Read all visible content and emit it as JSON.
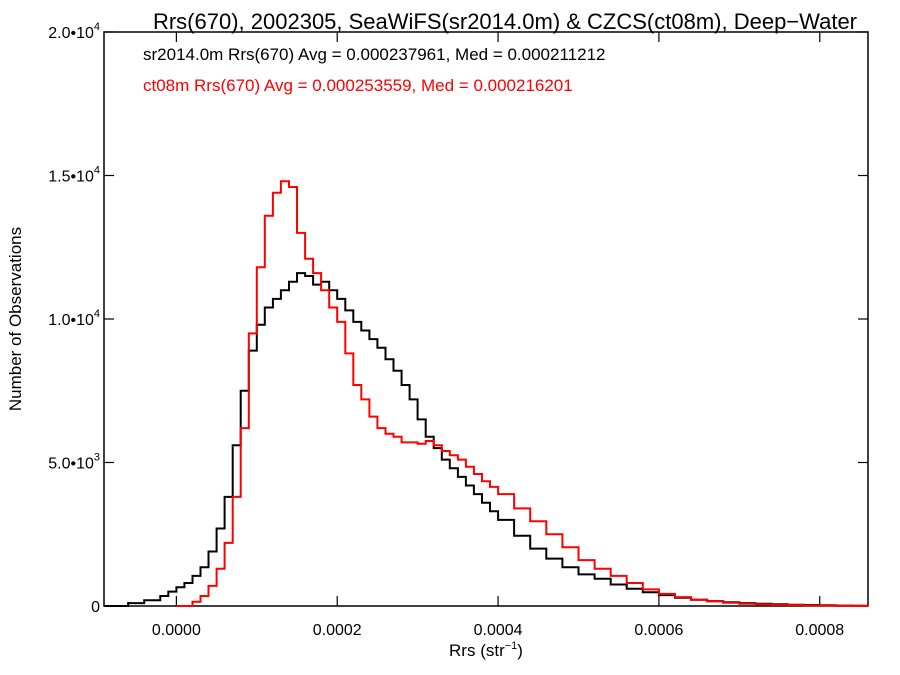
{
  "chart_data": {
    "type": "line",
    "title": "Rrs(670), 2002305, SeaWiFS(sr2014.0m) & CZCS(ct08m), Deep−Water",
    "xlabel": {
      "base": "Rrs (str",
      "sup": "−1",
      "tail": ")"
    },
    "ylabel": "Number of Observations",
    "xlim": [
      -9e-05,
      0.00086
    ],
    "ylim": [
      0,
      20000
    ],
    "x_ticks": [
      {
        "value": 0.0,
        "label": "0.0000"
      },
      {
        "value": 0.0002,
        "label": "0.0002"
      },
      {
        "value": 0.0004,
        "label": "0.0004"
      },
      {
        "value": 0.0006,
        "label": "0.0006"
      },
      {
        "value": 0.0008,
        "label": "0.0008"
      }
    ],
    "y_ticks": [
      {
        "value": 0,
        "base": "0",
        "sup": ""
      },
      {
        "value": 5000,
        "base": "5.0•10",
        "sup": "3"
      },
      {
        "value": 10000,
        "base": "1.0•10",
        "sup": "4"
      },
      {
        "value": 15000,
        "base": "1.5•10",
        "sup": "4"
      },
      {
        "value": 20000,
        "base": "2.0•10",
        "sup": "4"
      }
    ],
    "annotations": [
      {
        "text": "sr2014.0m Rrs(670) Avg = 0.000237961, Med = 0.000211212",
        "color": "#000000"
      },
      {
        "text": "ct08m Rrs(670) Avg = 0.000253559, Med = 0.000216201",
        "color": "#ff0000"
      }
    ],
    "series": [
      {
        "color": "#000000",
        "x": [
          -9e-05,
          -6e-05,
          -4e-05,
          -2e-05,
          -1e-05,
          0.0,
          1e-05,
          2e-05,
          3e-05,
          4e-05,
          5e-05,
          6e-05,
          7e-05,
          8e-05,
          9e-05,
          0.0001,
          0.00011,
          0.00012,
          0.00013,
          0.00014,
          0.00015,
          0.00016,
          0.00017,
          0.00018,
          0.00019,
          0.0002,
          0.00021,
          0.00022,
          0.00023,
          0.00024,
          0.00025,
          0.00026,
          0.00027,
          0.00028,
          0.00029,
          0.0003,
          0.00031,
          0.00032,
          0.00033,
          0.00034,
          0.00035,
          0.00036,
          0.00037,
          0.00038,
          0.00039,
          0.0004,
          0.00042,
          0.00044,
          0.00046,
          0.00048,
          0.0005,
          0.00052,
          0.00054,
          0.00056,
          0.00058,
          0.0006,
          0.00062,
          0.00064,
          0.00066,
          0.00068,
          0.0007,
          0.00072,
          0.00074,
          0.00076,
          0.00078,
          0.0008,
          0.00082,
          0.00084,
          0.00086
        ],
        "values": [
          0,
          100,
          200,
          350,
          500,
          650,
          800,
          1050,
          1350,
          1900,
          2700,
          3800,
          5600,
          7500,
          8900,
          9800,
          10400,
          10700,
          11000,
          11300,
          11600,
          11500,
          11200,
          11300,
          11000,
          10700,
          10300,
          9900,
          9600,
          9300,
          9000,
          8600,
          8200,
          7700,
          7200,
          6500,
          5900,
          5500,
          5100,
          4800,
          4500,
          4200,
          3900,
          3600,
          3300,
          3000,
          2450,
          2000,
          1650,
          1350,
          1100,
          950,
          750,
          600,
          480,
          380,
          290,
          220,
          170,
          130,
          100,
          80,
          60,
          45,
          35,
          25,
          15,
          10,
          5
        ]
      },
      {
        "color": "#ff0000",
        "x": [
          0.0,
          1e-05,
          2e-05,
          3e-05,
          4e-05,
          5e-05,
          6e-05,
          7e-05,
          8e-05,
          9e-05,
          0.0001,
          0.00011,
          0.00012,
          0.00013,
          0.00014,
          0.00015,
          0.00016,
          0.00017,
          0.00018,
          0.00019,
          0.0002,
          0.00021,
          0.00022,
          0.00023,
          0.00024,
          0.00025,
          0.00026,
          0.00027,
          0.00028,
          0.00029,
          0.0003,
          0.00031,
          0.00032,
          0.00033,
          0.00034,
          0.00035,
          0.00036,
          0.00037,
          0.00038,
          0.00039,
          0.0004,
          0.00042,
          0.00044,
          0.00046,
          0.00048,
          0.0005,
          0.00052,
          0.00054,
          0.00056,
          0.00058,
          0.0006,
          0.00062,
          0.00064,
          0.00066,
          0.00068,
          0.0007,
          0.00072,
          0.00074,
          0.00076,
          0.00078,
          0.0008,
          0.00082,
          0.00084,
          0.00086
        ],
        "values": [
          0,
          0,
          150,
          350,
          700,
          1300,
          2200,
          3800,
          6200,
          9500,
          11800,
          13600,
          14400,
          14800,
          14600,
          13000,
          12100,
          11600,
          11000,
          10400,
          9900,
          8800,
          7700,
          7200,
          6600,
          6200,
          6000,
          5900,
          5700,
          5700,
          5650,
          5750,
          5600,
          5400,
          5250,
          5100,
          4850,
          4600,
          4350,
          4150,
          3900,
          3400,
          2950,
          2500,
          2050,
          1600,
          1300,
          1050,
          800,
          580,
          420,
          310,
          220,
          160,
          110,
          80,
          55,
          40,
          30,
          20,
          15,
          10,
          5,
          0
        ]
      }
    ]
  }
}
